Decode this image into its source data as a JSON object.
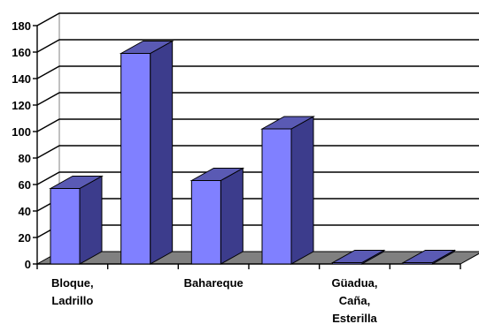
{
  "chart_data": {
    "type": "bar",
    "title": "",
    "xlabel": "",
    "ylabel": "",
    "categories": [
      "Bloque, Ladrillo",
      "",
      "Bahareque",
      "",
      "Güadua, Caña, Esterilla",
      ""
    ],
    "category_lines": [
      [
        "Bloque,",
        "Ladrillo"
      ],
      [],
      [
        "Bahareque"
      ],
      [],
      [
        "Güadua,",
        "Caña,",
        "Esterilla"
      ],
      []
    ],
    "values": [
      57,
      159,
      63,
      102,
      1,
      1
    ],
    "ylim": [
      0,
      180
    ],
    "yticks": [
      "0",
      "20",
      "40",
      "60",
      "80",
      "100",
      "120",
      "140",
      "160",
      "180"
    ],
    "grid": true,
    "style": "3d",
    "colors": {
      "bar_front": "#8080ff",
      "bar_side": "#3c3c8c",
      "bar_top": "#5a5ab4",
      "floor": "#808080",
      "wall": "#ffffff"
    }
  }
}
